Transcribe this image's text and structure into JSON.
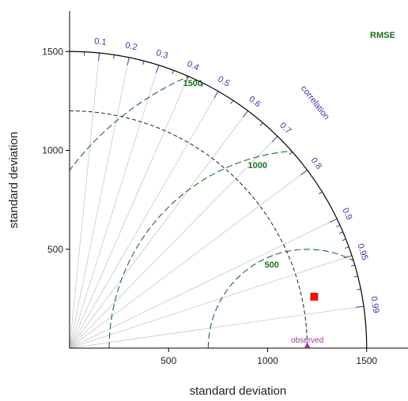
{
  "chart_data": {
    "type": "scatter",
    "subtype": "taylor-diagram",
    "xlabel": "standard deviation",
    "ylabel": "standard deviation",
    "xlim": [
      0,
      1700
    ],
    "ylim": [
      0,
      1700
    ],
    "x_ticks": [
      500,
      1000,
      1500
    ],
    "y_ticks": [
      500,
      1000,
      1500
    ],
    "outer_radius": 1500,
    "observed": {
      "label": "observed",
      "sd": 1200
    },
    "ref_arc_sd": 1200,
    "correlation_title": "correlation",
    "correlation_ticks": [
      {
        "value": 0.1,
        "label": "0.1"
      },
      {
        "value": 0.2,
        "label": "0.2"
      },
      {
        "value": 0.3,
        "label": "0.3"
      },
      {
        "value": 0.4,
        "label": "0.4"
      },
      {
        "value": 0.5,
        "label": "0.5"
      },
      {
        "value": 0.6,
        "label": "0.6"
      },
      {
        "value": 0.7,
        "label": "0.7"
      },
      {
        "value": 0.8,
        "label": "0.8"
      },
      {
        "value": 0.9,
        "label": "0.9"
      },
      {
        "value": 0.95,
        "label": "0.95"
      },
      {
        "value": 0.99,
        "label": "0.99"
      }
    ],
    "rmse_title": "RMSE",
    "rmse_contours": [
      {
        "value": 500,
        "label": "500"
      },
      {
        "value": 1000,
        "label": "1000"
      },
      {
        "value": 1500,
        "label": "1500"
      }
    ],
    "points": [
      {
        "x": 1235,
        "y": 260,
        "color": "#ee1111",
        "marker": "square"
      }
    ],
    "colors": {
      "correlation": "#3a3aa0",
      "rmse": "#1e6e1e",
      "observed": "#993399",
      "rays": "#c8c8c8",
      "axes": "#000000"
    }
  }
}
